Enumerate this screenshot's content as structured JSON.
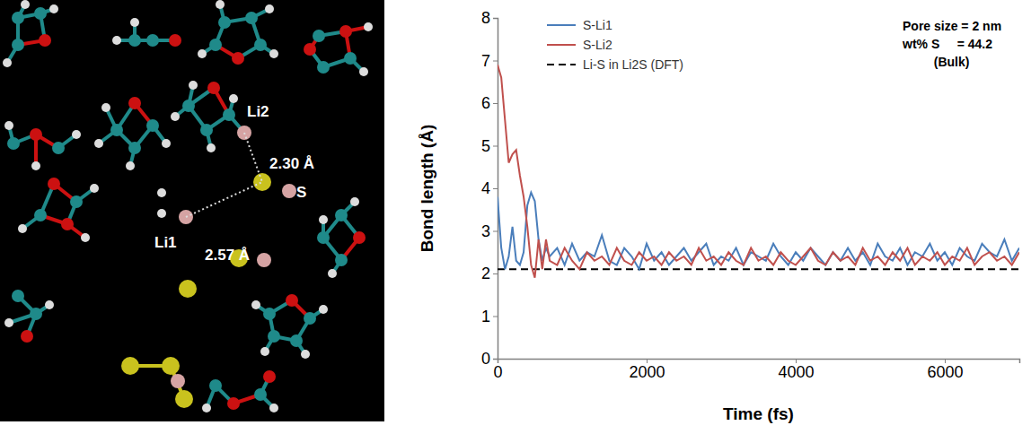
{
  "snapshot": {
    "labels": [
      "Li2",
      "2.30 Å",
      "S",
      "Li1",
      "2.57 Å"
    ]
  },
  "chart_data": {
    "type": "line",
    "x_label": "Time (fs)",
    "y_label": "Bond length (Å)",
    "annotations": [
      "Pore size = 2 nm",
      "wt% S     = 44.2",
      "(Bulk)"
    ],
    "x": [
      0,
      50,
      100,
      150,
      200,
      250,
      300,
      350,
      400,
      450,
      500,
      550,
      600,
      650,
      700,
      800,
      900,
      1000,
      1100,
      1200,
      1300,
      1400,
      1500,
      1600,
      1700,
      1800,
      1900,
      2000,
      2100,
      2200,
      2300,
      2400,
      2500,
      2600,
      2700,
      2800,
      2900,
      3000,
      3100,
      3200,
      3300,
      3400,
      3500,
      3600,
      3700,
      3800,
      3900,
      4000,
      4100,
      4200,
      4300,
      4400,
      4500,
      4600,
      4700,
      4800,
      4900,
      5000,
      5100,
      5200,
      5300,
      5400,
      5500,
      5600,
      5700,
      5800,
      5900,
      6000,
      6100,
      6200,
      6300,
      6400,
      6500,
      6600,
      6700,
      6800,
      6900,
      7000
    ],
    "series": [
      {
        "name": "S-Li1",
        "color": "#4a7ebb",
        "values": [
          3.8,
          2.6,
          2.1,
          2.4,
          3.1,
          2.3,
          2.2,
          2.5,
          3.6,
          3.9,
          3.7,
          2.8,
          2.3,
          2.6,
          2.4,
          2.6,
          2.2,
          2.7,
          2.3,
          2.5,
          2.4,
          2.9,
          2.3,
          2.2,
          2.6,
          2.4,
          2.1,
          2.7,
          2.3,
          2.5,
          2.2,
          2.4,
          2.6,
          2.3,
          2.5,
          2.7,
          2.2,
          2.4,
          2.3,
          2.6,
          2.2,
          2.5,
          2.4,
          2.3,
          2.7,
          2.4,
          2.2,
          2.5,
          2.3,
          2.6,
          2.4,
          2.2,
          2.5,
          2.3,
          2.6,
          2.3,
          2.5,
          2.2,
          2.7,
          2.4,
          2.3,
          2.6,
          2.2,
          2.5,
          2.4,
          2.7,
          2.3,
          2.5,
          2.2,
          2.6,
          2.4,
          2.3,
          2.7,
          2.5,
          2.4,
          2.8,
          2.3,
          2.6
        ]
      },
      {
        "name": "S-Li2",
        "color": "#c0504d",
        "values": [
          6.9,
          6.6,
          5.6,
          4.6,
          4.8,
          4.9,
          4.3,
          3.8,
          3.1,
          2.2,
          1.9,
          2.8,
          2.1,
          2.8,
          2.3,
          2.2,
          2.6,
          2.3,
          2.1,
          2.5,
          2.3,
          2.4,
          2.2,
          2.6,
          2.3,
          2.2,
          2.5,
          2.3,
          2.4,
          2.2,
          2.5,
          2.3,
          2.4,
          2.2,
          2.6,
          2.3,
          2.4,
          2.2,
          2.5,
          2.3,
          2.2,
          2.6,
          2.3,
          2.4,
          2.2,
          2.5,
          2.3,
          2.2,
          2.4,
          2.6,
          2.3,
          2.2,
          2.5,
          2.3,
          2.4,
          2.2,
          2.6,
          2.3,
          2.4,
          2.2,
          2.5,
          2.3,
          2.6,
          2.2,
          2.4,
          2.3,
          2.5,
          2.2,
          2.4,
          2.3,
          2.6,
          2.2,
          2.4,
          2.5,
          2.3,
          2.4,
          2.2,
          2.5
        ]
      }
    ],
    "reference_lines": [
      {
        "name": "Li-S in Li2S (DFT)",
        "y": 2.1,
        "color": "#000000",
        "line_style": "dashed"
      }
    ],
    "xlim": [
      0,
      7000
    ],
    "xticks": [
      0,
      2000,
      4000,
      6000
    ],
    "ylim": [
      0,
      8
    ],
    "yticks": [
      0,
      1,
      2,
      3,
      4,
      5,
      6,
      7,
      8
    ],
    "legend": "upper left",
    "grid": false
  }
}
